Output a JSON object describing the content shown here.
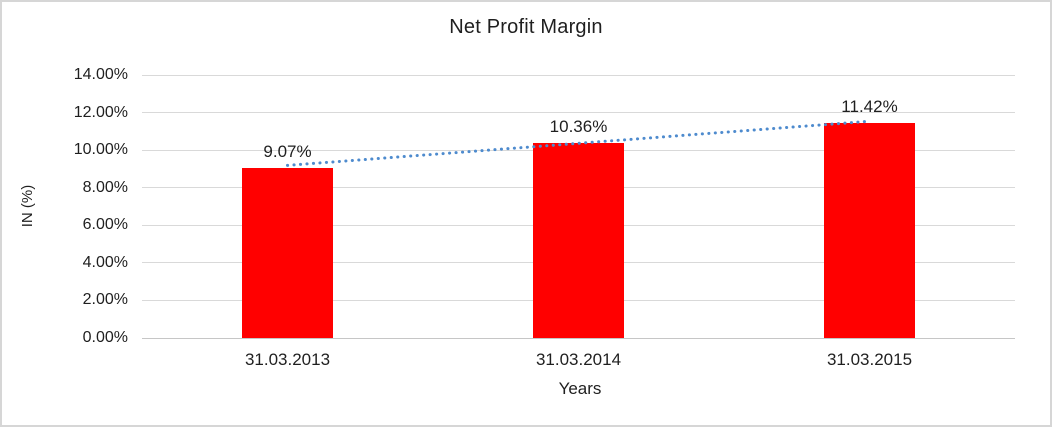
{
  "chart_data": {
    "type": "bar",
    "title": "Net Profit Margin",
    "xlabel": "Years",
    "ylabel": "IN (%)",
    "categories": [
      "31.03.2013",
      "31.03.2014",
      "31.03.2015"
    ],
    "values": [
      9.07,
      10.36,
      11.42
    ],
    "data_labels": [
      "9.07%",
      "10.36%",
      "11.42%"
    ],
    "ylim": [
      0,
      14
    ],
    "ytick_step": 2,
    "ytick_labels": [
      "0.00%",
      "2.00%",
      "4.00%",
      "6.00%",
      "8.00%",
      "10.00%",
      "12.00%",
      "14.00%"
    ],
    "grid": true,
    "legend": "none",
    "bar_color": "#ff0000",
    "gridline_color": "#d9d9d9",
    "axis_line_color": "#c6c6c6",
    "text_color": "#1f1f1f",
    "trendline": {
      "type": "linear",
      "style": "dotted",
      "color": "#4e8bce"
    }
  }
}
